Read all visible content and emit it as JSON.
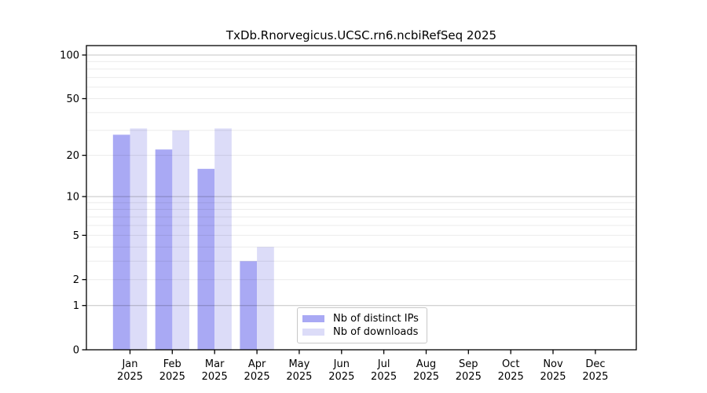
{
  "chart_data": {
    "type": "bar",
    "title": "TxDb.Rnorvegicus.UCSC.rn6.ncbiRefSeq 2025",
    "year_label": "2025",
    "categories": [
      "Jan",
      "Feb",
      "Mar",
      "Apr",
      "May",
      "Jun",
      "Jul",
      "Aug",
      "Sep",
      "Oct",
      "Nov",
      "Dec"
    ],
    "series": [
      {
        "name": "Nb of distinct IPs",
        "color": "#a9a9f4",
        "values": [
          28,
          22,
          16,
          3,
          0,
          0,
          0,
          0,
          0,
          0,
          0,
          0
        ]
      },
      {
        "name": "Nb of downloads",
        "color": "#dcdcf8",
        "values": [
          31,
          30,
          31,
          4,
          0,
          0,
          0,
          0,
          0,
          0,
          0,
          0
        ]
      }
    ],
    "yscale": "log10(1+y)",
    "yticks": [
      0,
      1,
      2,
      5,
      10,
      20,
      50,
      100
    ],
    "ylim": [
      0,
      116
    ],
    "xlabel": "",
    "ylabel": "",
    "grid": {
      "major": [
        1,
        10,
        100
      ],
      "minor": [
        2,
        3,
        4,
        5,
        6,
        7,
        8,
        9,
        20,
        30,
        40,
        50,
        60,
        70,
        80,
        90
      ]
    },
    "legend_position": "inside lower-center"
  }
}
